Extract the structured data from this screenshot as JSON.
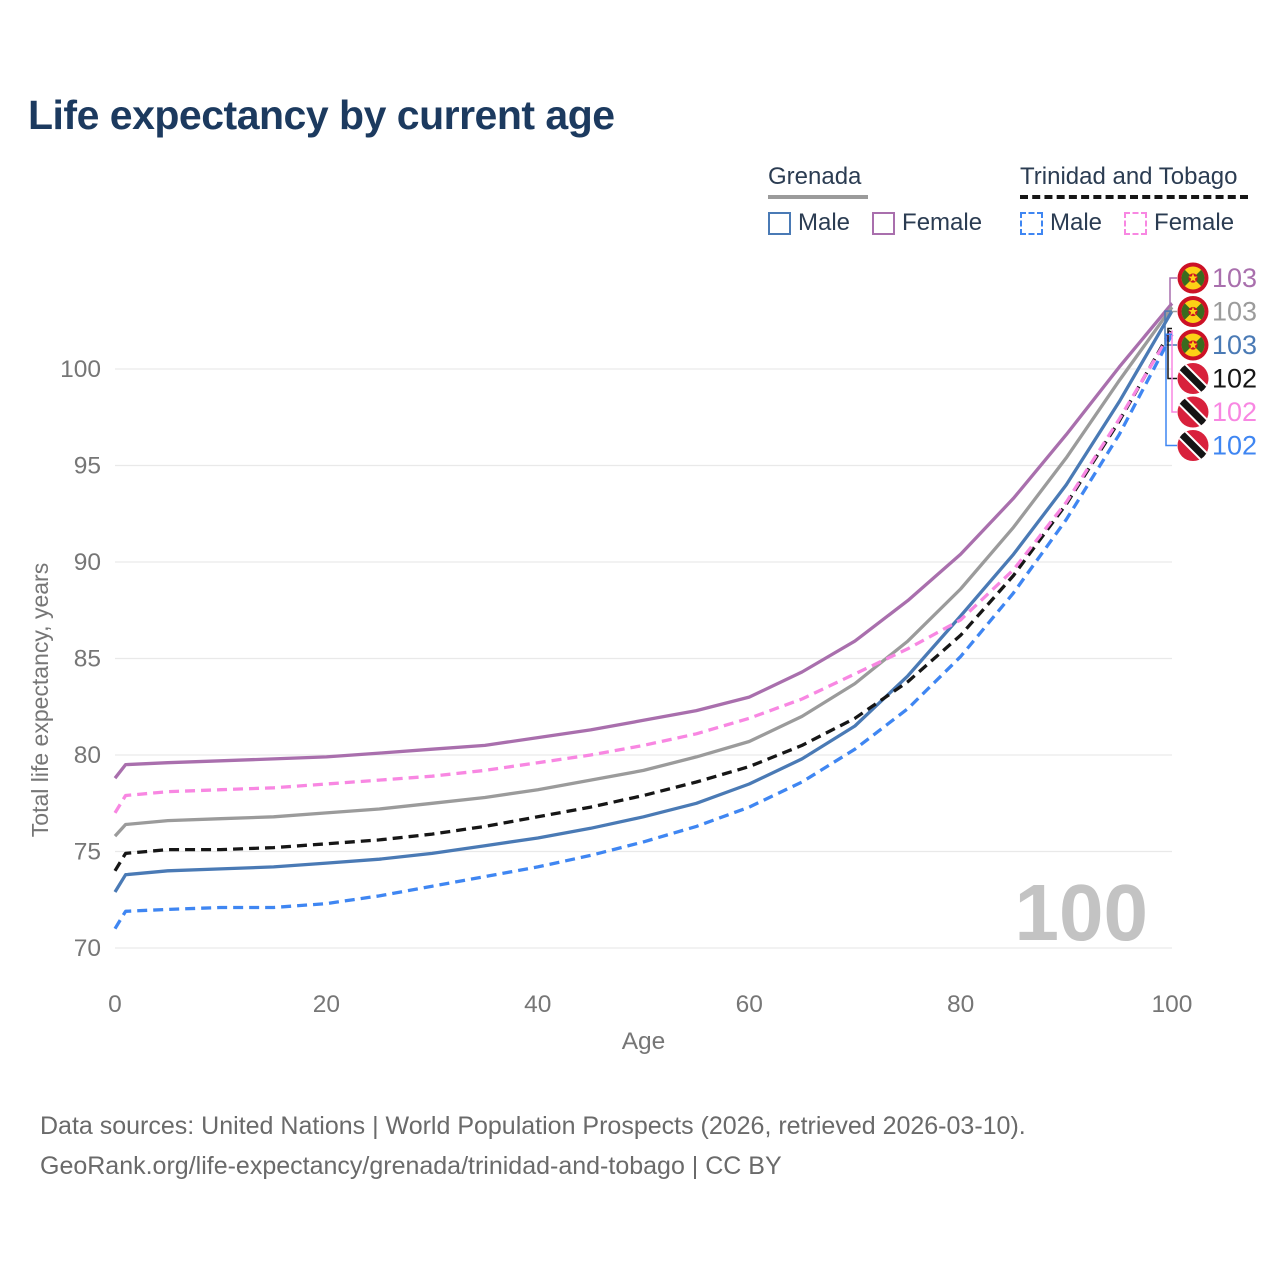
{
  "title": "Life expectancy by current age",
  "legend": {
    "grenada": {
      "title": "Grenada",
      "male": "Male",
      "female": "Female"
    },
    "trinidad_and_tobago": {
      "title": "Trinidad and Tobago",
      "male": "Male",
      "female": "Female"
    }
  },
  "watermark": "100",
  "footer": {
    "line1": "Data sources: United Nations | World Population Prospects (2026, retrieved 2026-03-10).",
    "line2": "GeoRank.org/life-expectancy/grenada/trinidad-and-tobago | CC BY"
  },
  "chart_data": {
    "type": "line",
    "title": "Life expectancy by current age",
    "xlabel": "Age",
    "ylabel": "Total life expectancy, years",
    "xlim": [
      0,
      100
    ],
    "ylim": [
      70,
      104.5
    ],
    "xticks": [
      0,
      20,
      40,
      60,
      80,
      100
    ],
    "yticks": [
      70,
      75,
      80,
      85,
      90,
      95,
      100
    ],
    "grid": "horizontal",
    "legend_position": "top-right",
    "x": [
      0,
      1,
      5,
      10,
      15,
      20,
      25,
      30,
      35,
      40,
      45,
      50,
      55,
      60,
      65,
      70,
      75,
      80,
      85,
      90,
      95,
      100
    ],
    "series": [
      {
        "name": "Grenada Female",
        "country": "Grenada",
        "sex": "Female",
        "flag": "grenada",
        "color": "#a96fad",
        "dash": false,
        "end_label": "103",
        "values": [
          78.8,
          79.5,
          79.6,
          79.7,
          79.8,
          79.9,
          80.1,
          80.3,
          80.5,
          80.9,
          81.3,
          81.8,
          82.3,
          83.0,
          84.3,
          85.9,
          88.0,
          90.4,
          93.3,
          96.6,
          100.1,
          103.4
        ]
      },
      {
        "name": "Grenada Both sexes",
        "country": "Grenada",
        "sex": "Both",
        "flag": "grenada",
        "color": "#9b9b9b",
        "dash": false,
        "end_label": "103",
        "values": [
          75.8,
          76.4,
          76.6,
          76.7,
          76.8,
          77.0,
          77.2,
          77.5,
          77.8,
          78.2,
          78.7,
          79.2,
          79.9,
          80.7,
          82.0,
          83.7,
          85.9,
          88.6,
          91.8,
          95.4,
          99.4,
          103.2
        ]
      },
      {
        "name": "Grenada Male",
        "country": "Grenada",
        "sex": "Male",
        "flag": "grenada",
        "color": "#4a7ab5",
        "dash": false,
        "end_label": "103",
        "values": [
          72.9,
          73.8,
          74.0,
          74.1,
          74.2,
          74.4,
          74.6,
          74.9,
          75.3,
          75.7,
          76.2,
          76.8,
          77.5,
          78.5,
          79.8,
          81.5,
          84.1,
          87.2,
          90.4,
          94.0,
          98.3,
          103.0
        ]
      },
      {
        "name": "Trinidad and Tobago Both sexes",
        "country": "Trinidad and Tobago",
        "sex": "Both",
        "flag": "trinidad-and-tobago",
        "color": "#161616",
        "dash": true,
        "end_label": "102",
        "values": [
          74.0,
          74.9,
          75.1,
          75.1,
          75.2,
          75.4,
          75.6,
          75.9,
          76.3,
          76.8,
          77.3,
          77.9,
          78.6,
          79.4,
          80.5,
          81.9,
          83.8,
          86.2,
          89.3,
          93.0,
          97.3,
          102.1
        ]
      },
      {
        "name": "Trinidad and Tobago Female",
        "country": "Trinidad and Tobago",
        "sex": "Female",
        "flag": "trinidad-and-tobago",
        "color": "#f887e2",
        "dash": true,
        "end_label": "102",
        "values": [
          77.0,
          77.9,
          78.1,
          78.2,
          78.3,
          78.5,
          78.7,
          78.9,
          79.2,
          79.6,
          80.0,
          80.5,
          81.1,
          81.9,
          82.9,
          84.2,
          85.5,
          87.0,
          89.6,
          93.1,
          97.4,
          102.0
        ]
      },
      {
        "name": "Trinidad and Tobago Male",
        "country": "Trinidad and Tobago",
        "sex": "Male",
        "flag": "trinidad-and-tobago",
        "color": "#3f86f2",
        "dash": true,
        "end_label": "102",
        "values": [
          71.0,
          71.9,
          72.0,
          72.1,
          72.1,
          72.3,
          72.7,
          73.2,
          73.7,
          74.2,
          74.8,
          75.5,
          76.3,
          77.3,
          78.6,
          80.3,
          82.4,
          85.1,
          88.4,
          92.2,
          96.6,
          101.8
        ]
      }
    ]
  }
}
